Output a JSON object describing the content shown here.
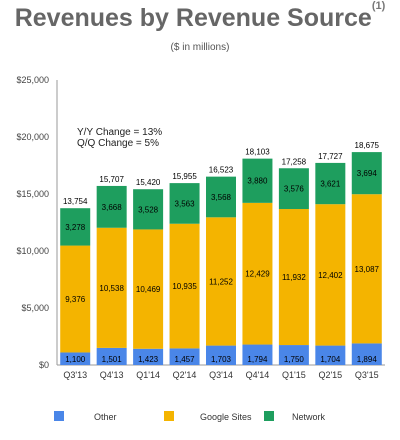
{
  "chart_data": {
    "type": "bar",
    "stacked": true,
    "title": "Revenues by Revenue Source",
    "title_note": "(1)",
    "subtitle": "($ in millions)",
    "categories": [
      "Q3'13",
      "Q4'13",
      "Q1'14",
      "Q2'14",
      "Q3'14",
      "Q4'14",
      "Q1'15",
      "Q2'15",
      "Q3'15"
    ],
    "series": [
      {
        "name": "Other",
        "color": "#4a86e8",
        "values": [
          1100,
          1501,
          1423,
          1457,
          1703,
          1794,
          1750,
          1704,
          1894
        ]
      },
      {
        "name": "Google Sites",
        "color": "#f4b400",
        "values": [
          9376,
          10538,
          10469,
          10935,
          11252,
          12429,
          11932,
          12402,
          13087
        ]
      },
      {
        "name": "Network",
        "color": "#1e9e5e",
        "values": [
          3278,
          3668,
          3528,
          3563,
          3568,
          3880,
          3576,
          3621,
          3694
        ]
      }
    ],
    "totals": [
      "13,754",
      "15,707",
      "15,420",
      "15,955",
      "16,523",
      "18,103",
      "17,258",
      "17,727",
      "18,675"
    ],
    "yticks": [
      0,
      5000,
      10000,
      15000,
      20000,
      25000
    ],
    "ytick_labels": [
      "$0",
      "$5,000",
      "$10,000",
      "$15,000",
      "$20,000",
      "$25,000"
    ],
    "ylim": [
      0,
      25000
    ],
    "annotations": [
      "Y/Y Change = 13%",
      "Q/Q Change = 5%"
    ],
    "legend_position": "bottom",
    "grid": false
  }
}
